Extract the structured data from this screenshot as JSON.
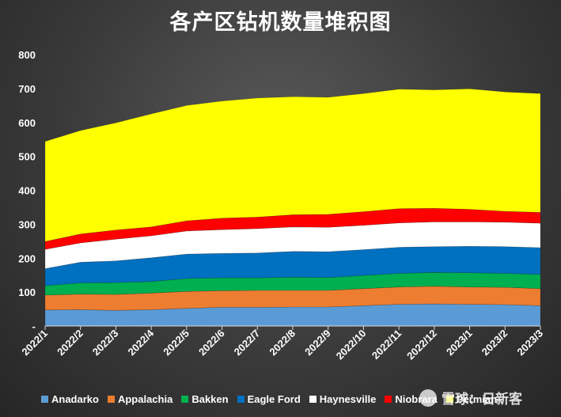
{
  "chart_data": {
    "type": "area",
    "stacked": true,
    "title": "各产区钻机数量堆积图",
    "ylim": [
      0,
      800
    ],
    "yticks": [
      0,
      100,
      200,
      300,
      400,
      500,
      600,
      700,
      800
    ],
    "ytick_labels": [
      "-",
      "100",
      "200",
      "300",
      "400",
      "500",
      "600",
      "700",
      "800"
    ],
    "categories": [
      "2022/1",
      "2022/2",
      "2022/3",
      "2022/4",
      "2022/5",
      "2022/6",
      "2022/7",
      "2022/8",
      "2022/9",
      "2022/10",
      "2022/11",
      "2022/12",
      "2023/1",
      "2023/2",
      "2023/3"
    ],
    "legend_position": "bottom",
    "grid": false,
    "series": [
      {
        "name": "Anadarko",
        "color": "#5b9bd5",
        "values": [
          47,
          48,
          46,
          48,
          52,
          55,
          55,
          56,
          56,
          60,
          64,
          65,
          64,
          63,
          60
        ]
      },
      {
        "name": "Appalachia",
        "color": "#ed7d31",
        "values": [
          44,
          46,
          47,
          49,
          50,
          49,
          50,
          49,
          49,
          50,
          51,
          52,
          51,
          51,
          50
        ]
      },
      {
        "name": "Bakken",
        "color": "#00b050",
        "values": [
          28,
          33,
          35,
          34,
          38,
          38,
          37,
          39,
          38,
          39,
          40,
          41,
          42,
          41,
          42
        ]
      },
      {
        "name": "Eagle Ford",
        "color": "#0070c0",
        "values": [
          50,
          61,
          64,
          70,
          72,
          72,
          73,
          76,
          76,
          76,
          77,
          76,
          78,
          79,
          79
        ]
      },
      {
        "name": "Haynesville",
        "color": "#ffffff",
        "values": [
          57,
          57,
          64,
          65,
          68,
          70,
          72,
          72,
          72,
          72,
          72,
          73,
          72,
          72,
          72
        ]
      },
      {
        "name": "Niobrara",
        "color": "#ff0000",
        "values": [
          23,
          26,
          27,
          26,
          30,
          34,
          34,
          36,
          38,
          40,
          42,
          40,
          37,
          32,
          32
        ]
      },
      {
        "name": "Permian",
        "color": "#ffff00",
        "values": [
          295,
          305,
          316,
          333,
          340,
          345,
          351,
          348,
          345,
          348,
          352,
          349,
          355,
          352,
          350
        ]
      }
    ]
  },
  "watermark": {
    "text": "雪球：日新客"
  }
}
